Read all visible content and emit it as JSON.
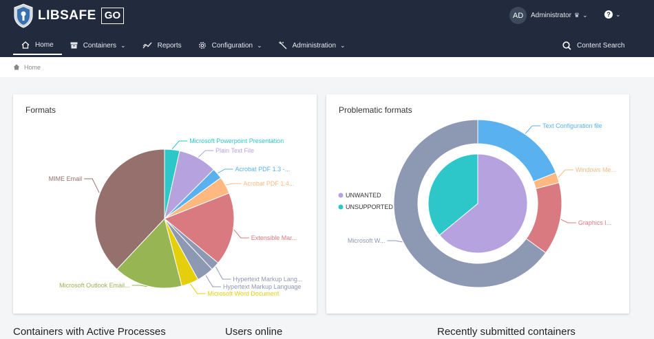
{
  "app": {
    "name": "LIBSAFE",
    "badge": "GO"
  },
  "user": {
    "initials": "AD",
    "name": "Administrator"
  },
  "nav": {
    "items": [
      {
        "label": "Home",
        "icon": "home-icon",
        "dropdown": false,
        "active": true
      },
      {
        "label": "Containers",
        "icon": "container-icon",
        "dropdown": true
      },
      {
        "label": "Reports",
        "icon": "chart-line-icon",
        "dropdown": false
      },
      {
        "label": "Configuration",
        "icon": "gear-icon",
        "dropdown": true
      },
      {
        "label": "Administration",
        "icon": "wand-icon",
        "dropdown": true
      }
    ],
    "search_label": "Content Search"
  },
  "breadcrumb": {
    "home": "Home"
  },
  "formats_card": {
    "title": "Formats"
  },
  "problematic_card": {
    "title": "Problematic formats"
  },
  "sections": {
    "active_processes": "Containers with Active Processes",
    "users_online": "Users online",
    "recent": "Recently submitted containers"
  },
  "chart_data": [
    {
      "type": "pie",
      "title": "Formats",
      "slices": [
        {
          "label": "Microsoft Powerpoint Presentation",
          "value": 3.5,
          "color": "#2ec7c9"
        },
        {
          "label": "Plain Text File",
          "value": 9,
          "color": "#b6a2de"
        },
        {
          "label": "Acrobat PDF 1.3 -...",
          "value": 2.5,
          "color": "#5ab1ef"
        },
        {
          "label": "Acrobat PDF 1.4...",
          "value": 4,
          "color": "#ffb980"
        },
        {
          "label": "Extensible Mar...",
          "value": 17,
          "color": "#d87a80"
        },
        {
          "label": "Hypertext Markup Lang...",
          "value": 2,
          "color": "#8d98b3"
        },
        {
          "label": "Hypertext Markup Language",
          "value": 4,
          "color": "#8d98b3"
        },
        {
          "label": "Microsoft Word Document",
          "value": 4,
          "color": "#e5cf0d"
        },
        {
          "label": "Microsoft Outlook Email...",
          "value": 16,
          "color": "#97b552"
        },
        {
          "label": "MIME Email",
          "value": 38,
          "color": "#95706d"
        }
      ]
    },
    {
      "type": "pie",
      "title": "Problematic formats",
      "legend": [
        "UNWANTED",
        "UNSUPPORTED"
      ],
      "inner": [
        {
          "label": "UNWANTED",
          "value": 64,
          "color": "#b6a2de"
        },
        {
          "label": "UNSUPPORTED",
          "value": 36,
          "color": "#2ec7c9"
        }
      ],
      "outer": [
        {
          "label": "Text Configuration file",
          "value": 19,
          "color": "#5ab1ef"
        },
        {
          "label": "Windows Me...",
          "value": 2,
          "color": "#ffb980"
        },
        {
          "label": "Graphics I...",
          "value": 14,
          "color": "#d87a80"
        },
        {
          "label": "Microsoft W...",
          "value": 65,
          "color": "#8d98b3"
        }
      ]
    }
  ]
}
